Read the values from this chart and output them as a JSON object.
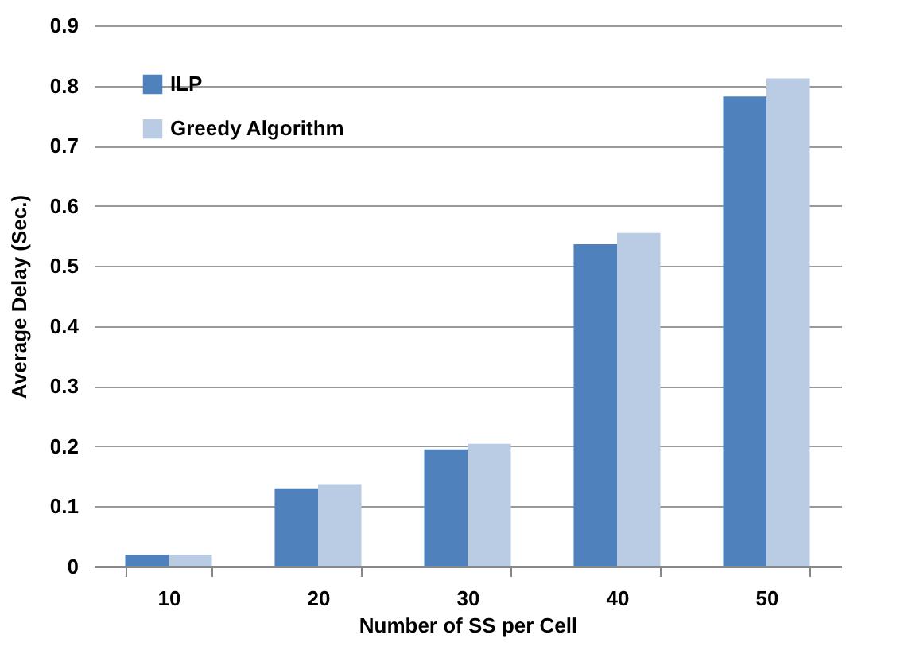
{
  "chart_data": {
    "type": "bar",
    "xlabel": "Number of SS per Cell",
    "ylabel": "Average Delay  (Sec.)",
    "categories": [
      "10",
      "20",
      "30",
      "40",
      "50"
    ],
    "series": [
      {
        "name": "ILP",
        "color": "#4f81bd",
        "values": [
          0.02,
          0.13,
          0.195,
          0.536,
          0.782
        ]
      },
      {
        "name": "Greedy Algorithm",
        "color": "#b9cce4",
        "values": [
          0.02,
          0.137,
          0.204,
          0.555,
          0.812
        ]
      }
    ],
    "ylim": [
      0,
      0.9
    ],
    "yticks": [
      0,
      0.1,
      0.2,
      0.3,
      0.4,
      0.5,
      0.6,
      0.7,
      0.8,
      0.9
    ],
    "grid": "y",
    "legend": "top left"
  }
}
